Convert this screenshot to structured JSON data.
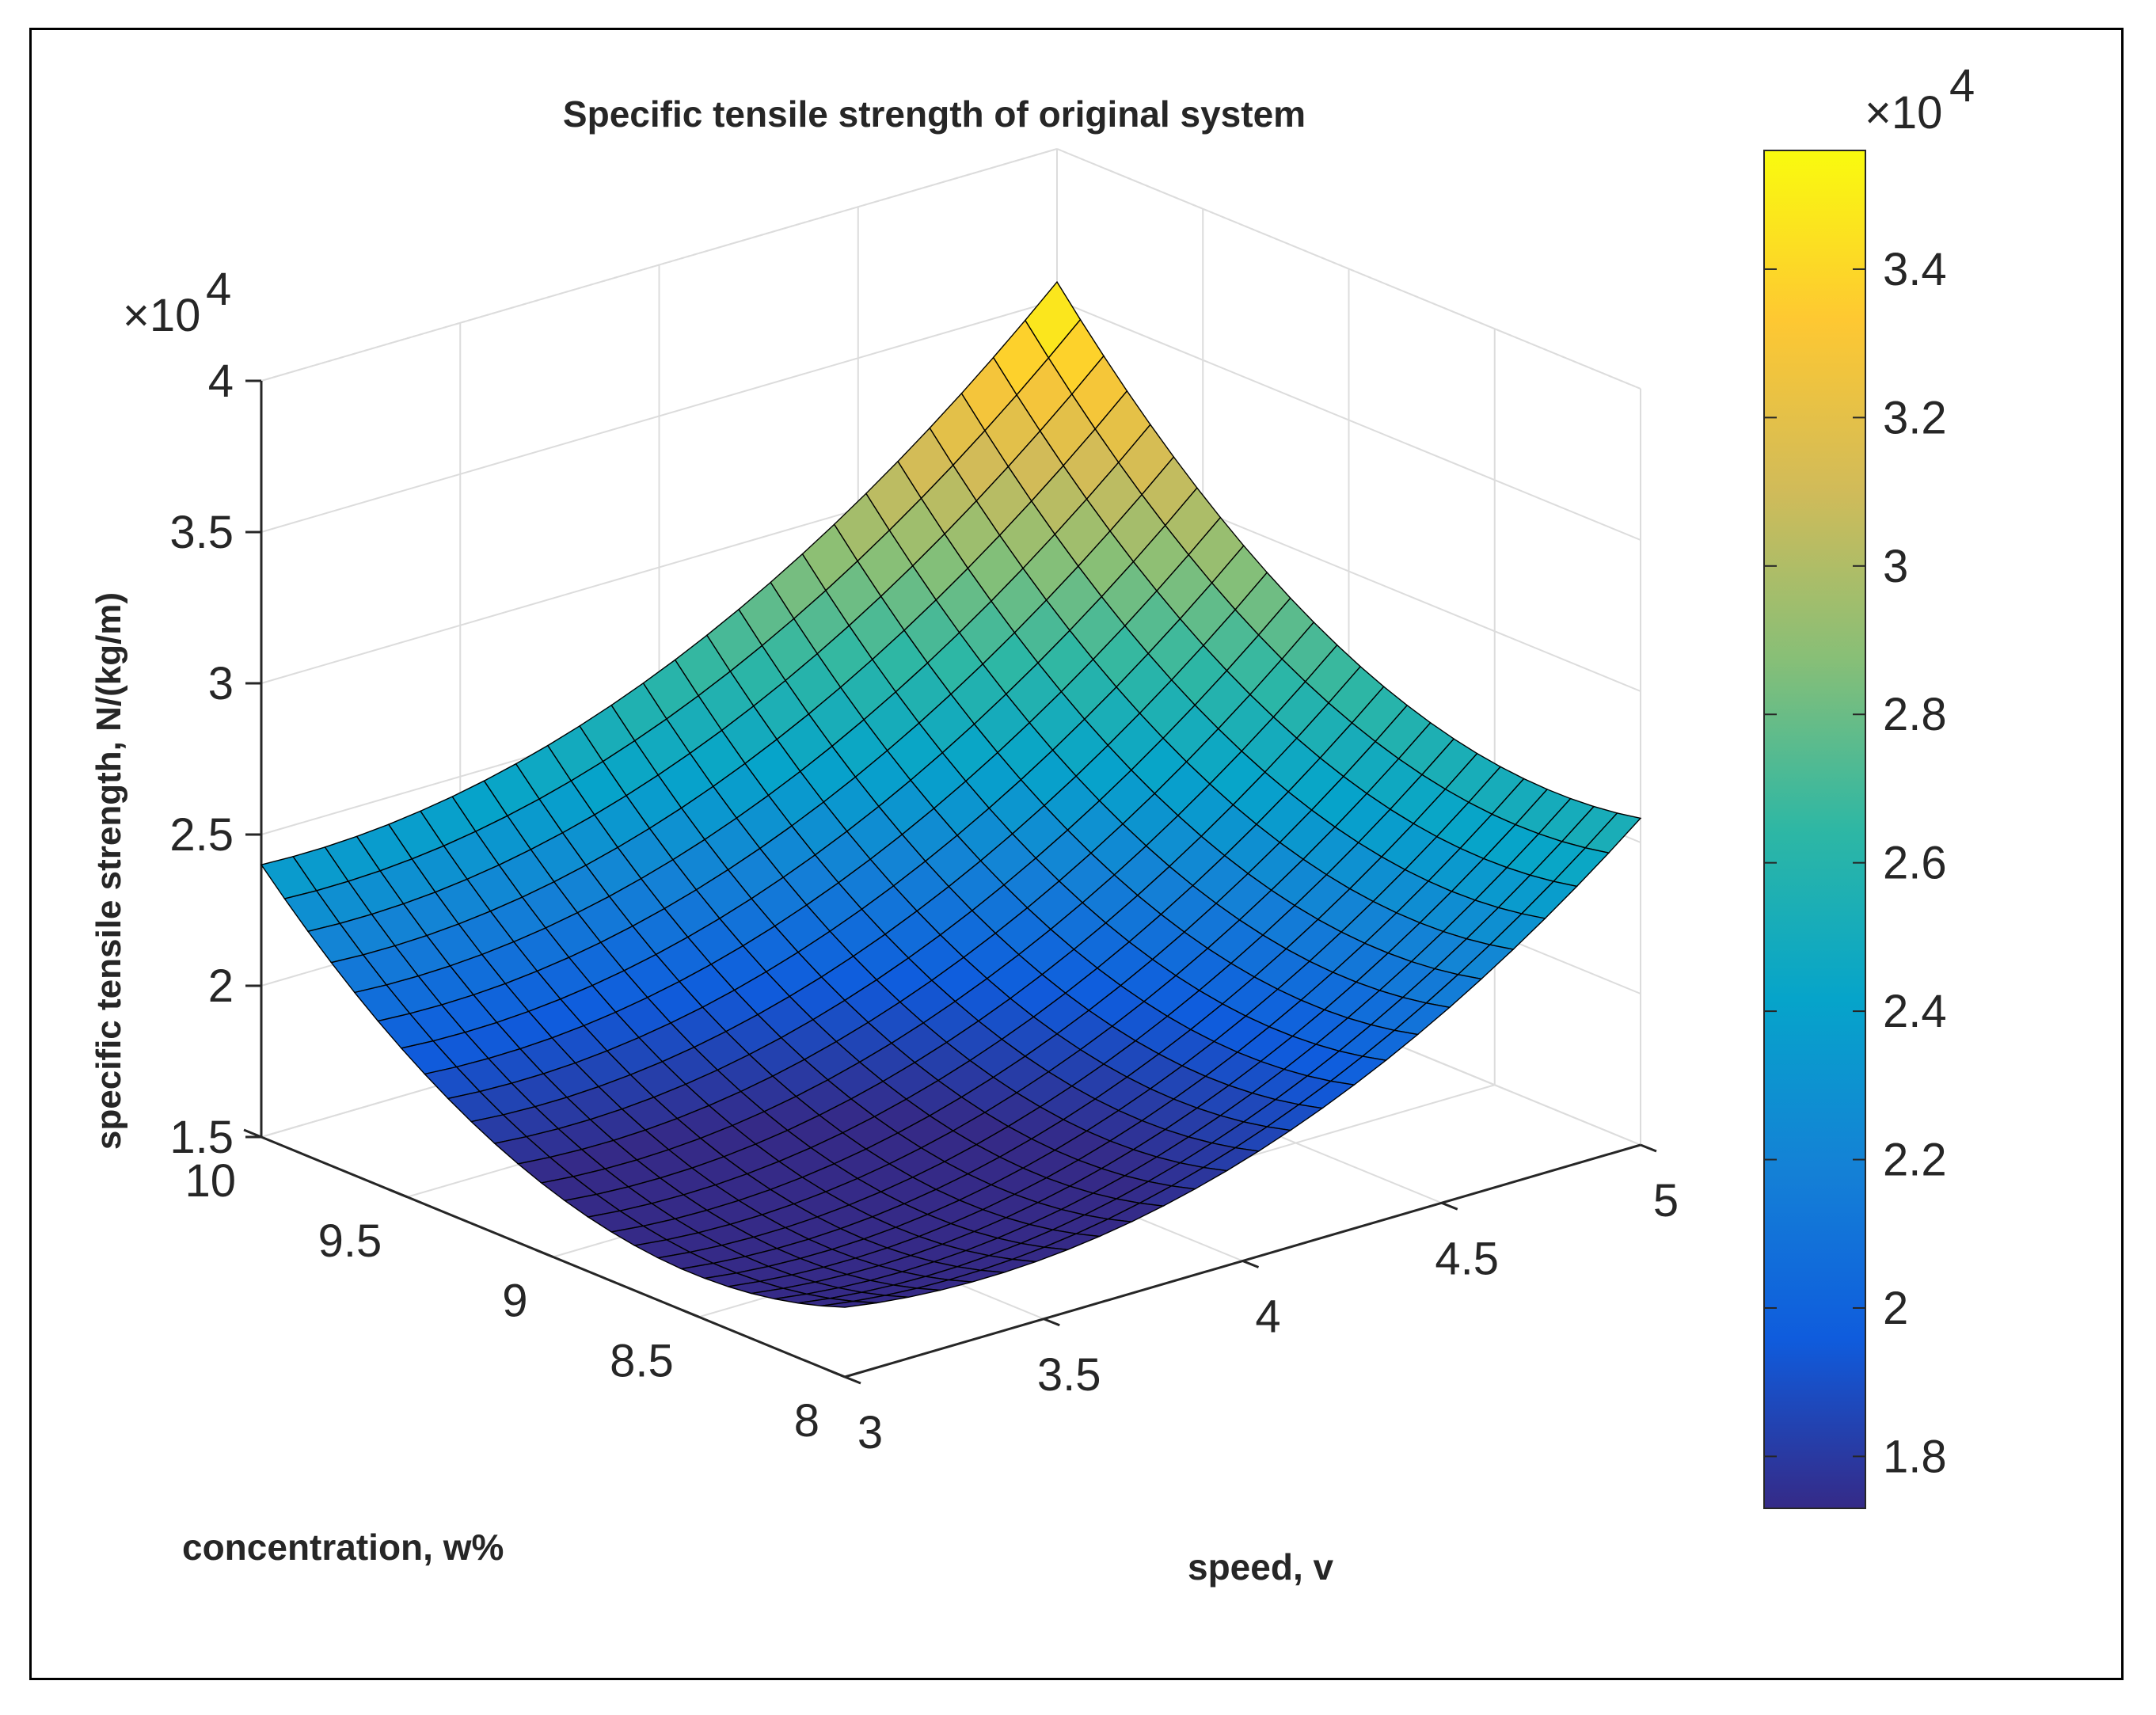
{
  "chart_data": {
    "type": "surface",
    "title": "Specific tensile strength of original system",
    "xlabel": "speed, v",
    "ylabel": "concentration, w%",
    "zlabel": "specific tensile strength, N/(kg/m)",
    "z_exponent_label": "×10",
    "z_exponent_power": "4",
    "x_range": [
      3,
      5
    ],
    "y_range": [
      8,
      10
    ],
    "z_range": [
      15000,
      40000
    ],
    "x_ticks": [
      "3",
      "3.5",
      "4",
      "4.5",
      "5"
    ],
    "y_ticks": [
      "8",
      "8.5",
      "9",
      "9.5",
      "10"
    ],
    "z_ticks": [
      "1.5",
      "2",
      "2.5",
      "3",
      "3.5",
      "4"
    ],
    "grid": "on",
    "colormap": "parula",
    "mesh_resolution": 25,
    "corner_values": {
      "v3_w8": 17300,
      "v5_w8": 25800,
      "v3_w10": 24000,
      "v5_w10": 35600
    },
    "colorbar": {
      "range": [
        17300,
        35600
      ],
      "exponent_label": "×10",
      "exponent_power": "4",
      "ticks": [
        "1.8",
        "2",
        "2.2",
        "2.4",
        "2.6",
        "2.8",
        "3",
        "3.2",
        "3.4"
      ]
    }
  }
}
